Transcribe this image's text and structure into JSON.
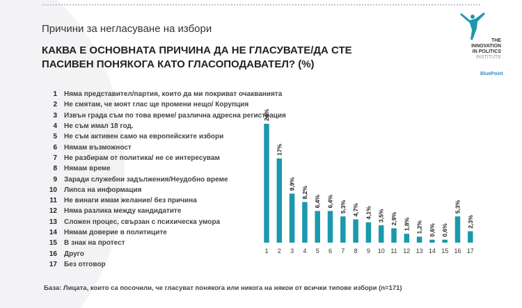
{
  "subtitle": "Причини за негласуване на избори",
  "title": "КАКВА Е ОСНОВНАТА ПРИЧИНА ДА НЕ ГЛАСУВАТЕ/ДА СТЕ ПАСИВЕН ПОНЯКОГА КАТО ГЛАСОПОДАВАТЕЛ? (%)",
  "logo": {
    "line1": "THE",
    "line2": "INNOVATION",
    "line3": "IN POLITICS",
    "line4": "INSTITUTE",
    "partner": "BluePoint"
  },
  "legend": [
    {
      "num": "1",
      "label": "Няма представител/партия, които да ми покриват очакванията"
    },
    {
      "num": "2",
      "label": "Не смятам, че моят глас ще промени нещо/ Корупция"
    },
    {
      "num": "3",
      "label": "Извън града съм по това време/ различна адресна регистрация"
    },
    {
      "num": "4",
      "label": "Не съм имал 18 год."
    },
    {
      "num": "5",
      "label": "Не съм активен само на европейските избори"
    },
    {
      "num": "6",
      "label": "Нямам възможност"
    },
    {
      "num": "7",
      "label": "Не разбирам от политика/ не се интересувам"
    },
    {
      "num": "8",
      "label": "Нямам време"
    },
    {
      "num": "9",
      "label": "Заради служебни задължения/Неудобно време"
    },
    {
      "num": "10",
      "label": "Липса на информация"
    },
    {
      "num": "11",
      "label": "Не винаги имам желание/ без причина"
    },
    {
      "num": "12",
      "label": "Няма разлика между кандидатите"
    },
    {
      "num": "13",
      "label": "Сложен процес, свързан с психическа умора"
    },
    {
      "num": "14",
      "label": "Нямам доверие в политиците"
    },
    {
      "num": "15",
      "label": "В знак на протест"
    },
    {
      "num": "16",
      "label": "Друго"
    },
    {
      "num": "17",
      "label": "Без отговор"
    }
  ],
  "base_note": "База: Лицата, които са посочили, че гласуват понякога или никога на някои от всички типове избори (n=171)",
  "chart_data": {
    "type": "bar",
    "categories": [
      "1",
      "2",
      "3",
      "4",
      "5",
      "6",
      "7",
      "8",
      "9",
      "10",
      "11",
      "12",
      "13",
      "14",
      "15",
      "16",
      "17"
    ],
    "values": [
      24,
      17,
      9.9,
      8.2,
      6.4,
      6.4,
      5.3,
      4.7,
      4.1,
      3.5,
      2.9,
      1.8,
      1.2,
      0.6,
      0.6,
      5.3,
      2.3
    ],
    "data_labels": [
      "24%",
      "17%",
      "9,9%",
      "8,2%",
      "6,4%",
      "6,4%",
      "5,3%",
      "4,7%",
      "4,1%",
      "3,5%",
      "2,9%",
      "1,8%",
      "1,2%",
      "0,6%",
      "0,6%",
      "5,3%",
      "2,3%"
    ],
    "ylim": [
      0,
      24
    ],
    "grid": false,
    "bar_color": "#1b98ad"
  }
}
